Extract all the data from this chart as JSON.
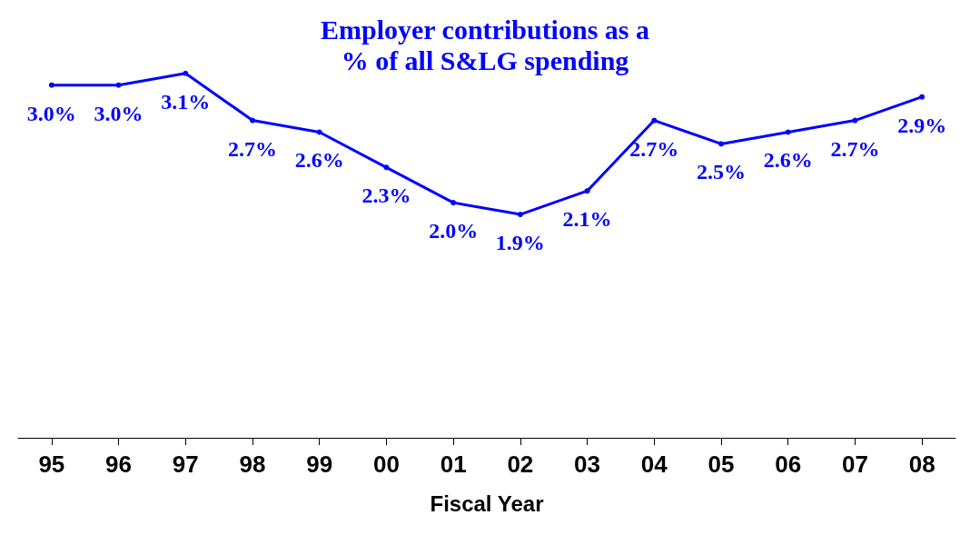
{
  "chart_data": {
    "type": "line",
    "title": "Employer contributions as a\n% of all S&LG spending",
    "xlabel": "Fiscal Year",
    "categories": [
      "95",
      "96",
      "97",
      "98",
      "99",
      "00",
      "01",
      "02",
      "03",
      "04",
      "05",
      "06",
      "07",
      "08"
    ],
    "series": [
      {
        "color": "#0000ff",
        "values": [
          3.0,
          3.0,
          3.1,
          2.7,
          2.6,
          2.3,
          2.0,
          1.9,
          2.1,
          2.7,
          2.5,
          2.6,
          2.7,
          2.9
        ],
        "value_labels": [
          "3.0%",
          "3.0%",
          "3.1%",
          "2.7%",
          "2.6%",
          "2.3%",
          "2.0%",
          "1.9%",
          "2.1%",
          "2.7%",
          "2.5%",
          "2.6%",
          "2.7%",
          "2.9%"
        ]
      }
    ],
    "marker": "circle",
    "line_style": "solid",
    "grid": false,
    "tick_labels": "x"
  }
}
